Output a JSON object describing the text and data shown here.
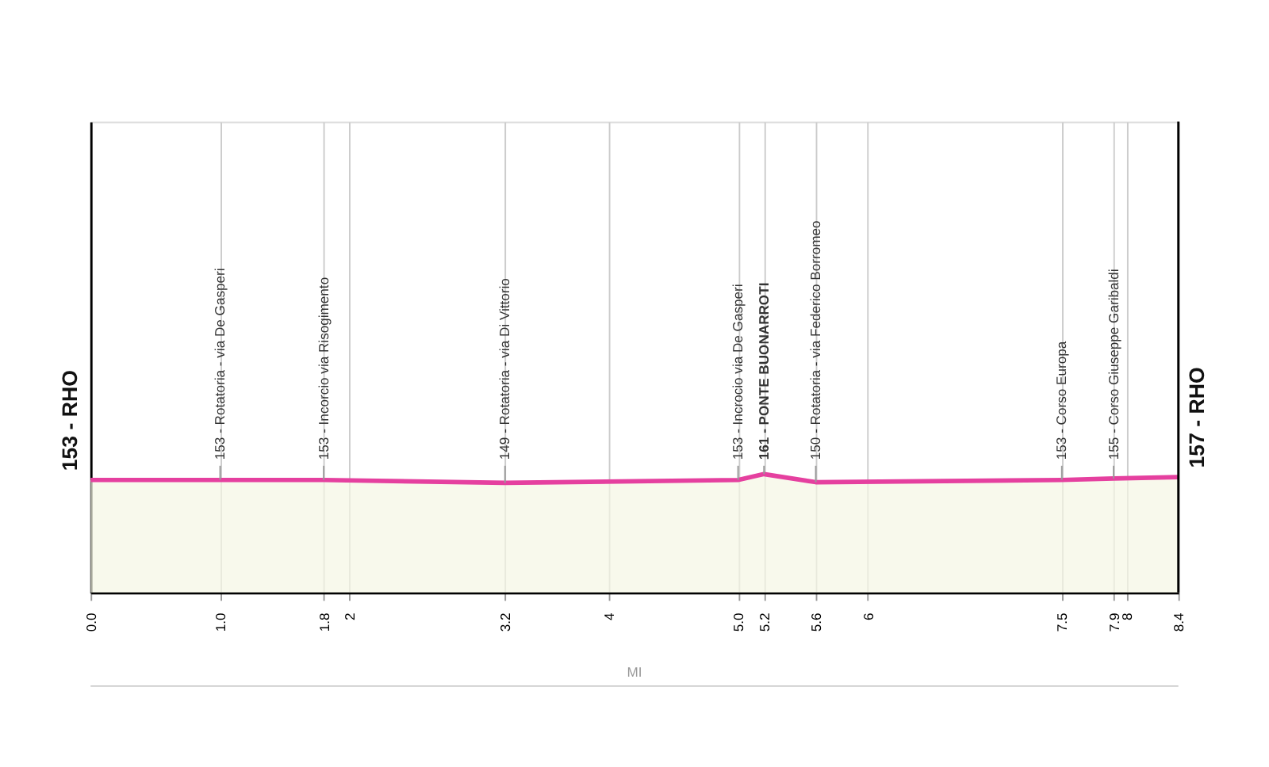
{
  "chart_data": {
    "type": "area",
    "x": [
      0.0,
      1.0,
      1.8,
      3.2,
      5.0,
      5.2,
      5.6,
      7.5,
      7.9,
      8.4
    ],
    "series": [
      {
        "color": "#e5409f",
        "values": [
          153,
          153,
          153,
          149,
          153,
          161,
          150,
          153,
          155,
          157
        ],
        "value_labels": [
          "153 - RHO",
          "153 - Rotatoria - via De Gasperi",
          "153 - Incorcio via Risogimento",
          "149 - Rotatoria - via Di Vittorio",
          "153 - Incrocio via De Gasperi",
          "161 - PONTE BUONARROTI",
          "150 - Rotatoria - via Federico Borromeo",
          "153 - Corso Europa",
          "155 - Corso Giuseppe Garibaldi",
          "157 - RHO"
        ]
      }
    ],
    "xlim": [
      0,
      8.4
    ],
    "xticks": [
      {
        "value": 0,
        "label": "0.0"
      },
      {
        "value": 1,
        "label": "1.0"
      },
      1.8,
      2,
      3.2,
      4,
      {
        "value": 5,
        "label": "5.0"
      },
      5.2,
      5.6,
      6,
      7.5,
      7.9,
      8,
      8.4
    ],
    "ylim": [
      0,
      640
    ],
    "tick_labels": "x",
    "grid": "x",
    "annotations": [
      "MI"
    ]
  }
}
